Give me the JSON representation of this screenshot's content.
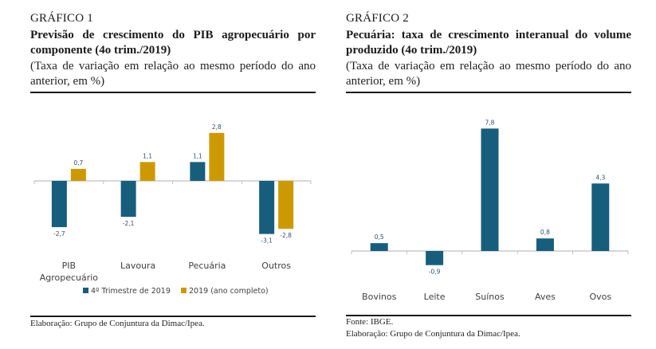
{
  "colors": {
    "series_q4": "#175e7d",
    "series_year": "#cc9a00",
    "axis": "#bfbfbf",
    "label_text": "#2f4f6f",
    "category_text": "#404040"
  },
  "panels": [
    {
      "number": "GRÁFICO 1",
      "title": "Previsão de crescimento do PIB agropecuário por componente (4o trim./2019)",
      "subtitle": "(Taxa de variação em relação ao mesmo período do ano anterior, em %)",
      "notes": [
        "Elaboração: Grupo de Conjuntura da Dimac/Ipea."
      ]
    },
    {
      "number": "GRÁFICO 2",
      "title": "Pecuária: taxa de crescimento interanual do volume produzido (4o trim./2019)",
      "subtitle": "(Taxa de variação em relação ao mesmo período do ano anterior, em %)",
      "notes": [
        "Fonte: IBGE.",
        "Elaboração: Grupo de Conjuntura da Dimac/Ipea."
      ]
    }
  ],
  "chart_data": [
    {
      "type": "bar",
      "title": "Previsão de crescimento do PIB agropecuário por componente (4o trim./2019)",
      "subtitle": "(Taxa de variação em relação ao mesmo período do ano anterior, em %)",
      "categories": [
        [
          "PIB",
          "Agropecuário"
        ],
        [
          "Lavoura"
        ],
        [
          "Pecuária"
        ],
        [
          "Outros"
        ]
      ],
      "series": [
        {
          "name": "4º Trimestre de 2019",
          "values": [
            -2.7,
            -2.1,
            1.1,
            -3.1
          ],
          "labels": [
            "-2,7",
            "-2,1",
            "1,1",
            "-3,1"
          ]
        },
        {
          "name": "2019 (ano completo)",
          "values": [
            0.7,
            1.1,
            2.8,
            -2.8
          ],
          "labels": [
            "0,7",
            "1,1",
            "2,8",
            "-2,8"
          ]
        }
      ],
      "xlabel": "",
      "ylabel": "",
      "ylim": [
        -3.5,
        3.5
      ],
      "grid": false,
      "legend": "bottom-center"
    },
    {
      "type": "bar",
      "title": "Pecuária: taxa de crescimento interanual do volume produzido (4o trim./2019)",
      "subtitle": "(Taxa de variação em relação ao mesmo período do ano anterior, em %)",
      "categories": [
        [
          "Bovinos"
        ],
        [
          "Leite"
        ],
        [
          "Suínos"
        ],
        [
          "Aves"
        ],
        [
          "Ovos"
        ]
      ],
      "series": [
        {
          "name": "Pecuária",
          "values": [
            0.5,
            -0.9,
            7.8,
            0.8,
            4.3
          ],
          "labels": [
            "0,5",
            "-0,9",
            "7,8",
            "0,8",
            "4,3"
          ]
        }
      ],
      "xlabel": "",
      "ylabel": "",
      "ylim": [
        -2.2,
        8.0
      ],
      "grid": false,
      "legend": "none"
    }
  ]
}
